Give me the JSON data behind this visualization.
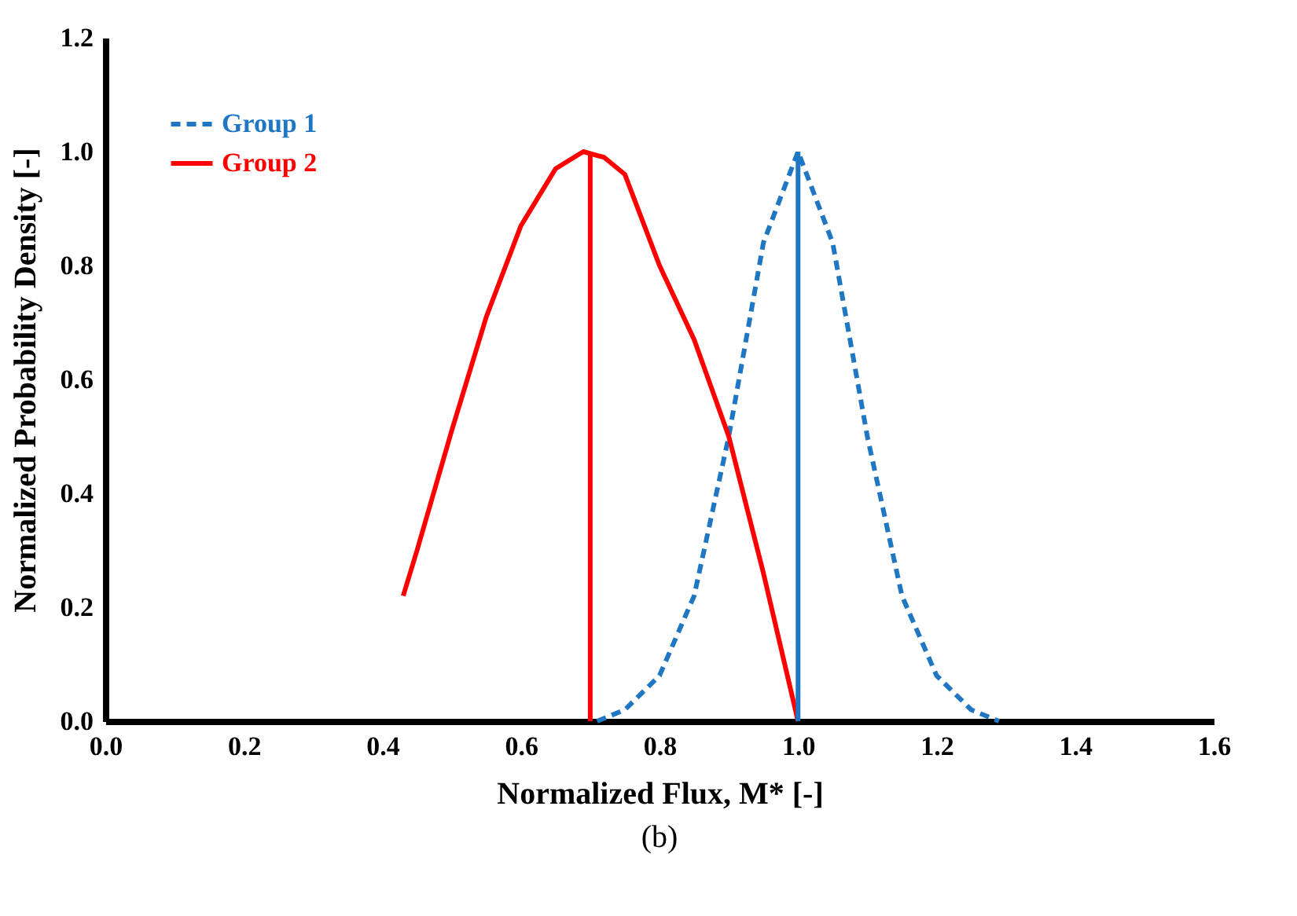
{
  "chart_data": {
    "type": "line",
    "xlabel": "Normalized Flux, M* [-]",
    "ylabel": "Normalized Probability Density [-]",
    "annotations": [
      "(b)"
    ],
    "xlim": [
      0,
      1.6
    ],
    "ylim": [
      0,
      1.2
    ],
    "xticks": [
      {
        "value": 0,
        "label": "0.0"
      },
      0.2,
      0.4,
      0.6,
      0.8,
      {
        "value": 1,
        "label": "1.0"
      },
      1.2,
      1.4,
      1.6
    ],
    "yticks": [
      {
        "value": 0,
        "label": "0.0"
      },
      0.2,
      0.4,
      0.6,
      0.8,
      {
        "value": 1,
        "label": "1.0"
      },
      1.2
    ],
    "grid": false,
    "legend": "top left",
    "series": [
      {
        "name": "Group 1",
        "color": "#1f77c4",
        "line_style": "dashed",
        "x": [
          0.71,
          0.75,
          0.8,
          0.85,
          0.9,
          0.95,
          1.0,
          1.05,
          1.1,
          1.15,
          1.2,
          1.25,
          1.29
        ],
        "values": [
          0,
          0.02,
          0.08,
          0.22,
          0.5,
          0.84,
          1.0,
          0.84,
          0.5,
          0.22,
          0.08,
          0.02,
          0
        ]
      },
      {
        "name": "Group 2",
        "color": "#ff0000",
        "line_style": "solid",
        "x": [
          0.43,
          0.45,
          0.5,
          0.55,
          0.6,
          0.65,
          0.69,
          0.72,
          0.75,
          0.8,
          0.85,
          0.9,
          0.95,
          1.0
        ],
        "values": [
          0.22,
          0.3,
          0.51,
          0.71,
          0.87,
          0.97,
          1.0,
          0.99,
          0.96,
          0.8,
          0.67,
          0.5,
          0.26,
          0
        ]
      },
      {
        "color": "#1f77c4",
        "line_style": "solid",
        "x": [
          1.0,
          1.0
        ],
        "values": [
          0,
          1.0
        ]
      },
      {
        "color": "#ff0000",
        "line_style": "solid",
        "x": [
          0.7,
          0.7
        ],
        "values": [
          0,
          1.0
        ]
      }
    ]
  }
}
